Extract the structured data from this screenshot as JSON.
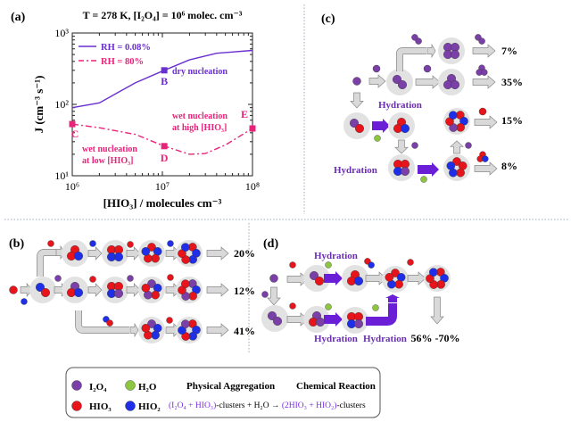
{
  "panel_labels": {
    "a": "(a)",
    "b": "(b)",
    "c": "(c)",
    "d": "(d)"
  },
  "colors": {
    "I2O4": "#7b3fa8",
    "HIO3": "#e8141b",
    "HIO2": "#1f2fe8",
    "H2O": "#8dc63f",
    "dry_line": "#6a2fd0",
    "wet_line": "#e8237a",
    "chemical_arrow": "#6a1fd6",
    "physical_arrow": "#d9d9d9"
  },
  "chart_data": {
    "type": "line",
    "title": "T = 278 K, [I₂O₄] = 10⁶ molec. cm⁻³",
    "xlabel": "[HIO₃] / molecules cm⁻³",
    "ylabel": "J (cm⁻³ s⁻¹)",
    "xscale": "log",
    "yscale": "log",
    "xlim": [
      1000000,
      100000000
    ],
    "ylim": [
      10,
      1000
    ],
    "xticks": [
      "10⁶",
      "10⁷",
      "10⁸"
    ],
    "yticks": [
      "10¹",
      "10²",
      "10³"
    ],
    "grid": false,
    "legend_position": "top-left",
    "series": [
      {
        "name": "RH = 0.08%",
        "style": "solid",
        "x": [
          1000000,
          2000000,
          5000000,
          10500000,
          20000000,
          40000000,
          100000000
        ],
        "y": [
          90,
          105,
          200,
          300,
          420,
          520,
          570
        ]
      },
      {
        "name": "RH = 80%",
        "style": "dash-dot",
        "x": [
          1000000,
          2000000,
          5000000,
          10500000,
          20000000,
          30000000,
          50000000,
          100000000
        ],
        "y": [
          53,
          47,
          38,
          26,
          20,
          20.5,
          27,
          46
        ]
      }
    ],
    "points": [
      {
        "label": "B",
        "x": 10500000,
        "y": 300,
        "series": 0
      },
      {
        "label": "C",
        "x": 1000000,
        "y": 53,
        "series": 1
      },
      {
        "label": "D",
        "x": 10500000,
        "y": 26,
        "series": 1
      },
      {
        "label": "E",
        "x": 100000000,
        "y": 46,
        "series": 1
      }
    ],
    "annotations": {
      "dry": "dry nucleation",
      "wet_low_1": "wet nucleation",
      "wet_low_2": "at low [HIO₃]",
      "wet_high_1": "wet nucleation",
      "wet_high_2": "at high [HIO₃]"
    }
  },
  "panel_b": {
    "percent_top": "20%",
    "percent_mid": "12%",
    "percent_bottom": "41%"
  },
  "panel_c": {
    "percent_1": "7%",
    "percent_2": "35%",
    "percent_3": "15%",
    "percent_4": "8%",
    "hydration_1": "Hydration",
    "hydration_2": "Hydration"
  },
  "panel_d": {
    "hydration_top": "Hydration",
    "hydration_bottom_1": "Hydration",
    "hydration_bottom_2": "Hydration",
    "percent": "56% -70%"
  },
  "legend": {
    "i2o4": "I₂O₄",
    "h2o": "H₂O",
    "hio3": "HIO₃",
    "hio2": "HIO₂",
    "physical": "Physical Aggregation",
    "chemical": "Chemical Reaction",
    "eq_left": "(I₂O₄ + HIO₃)",
    "eq_mid": "-clusters + H₂O → ",
    "eq_right": "(2HIO₃ + HIO₂)",
    "eq_end": "-clusters"
  }
}
